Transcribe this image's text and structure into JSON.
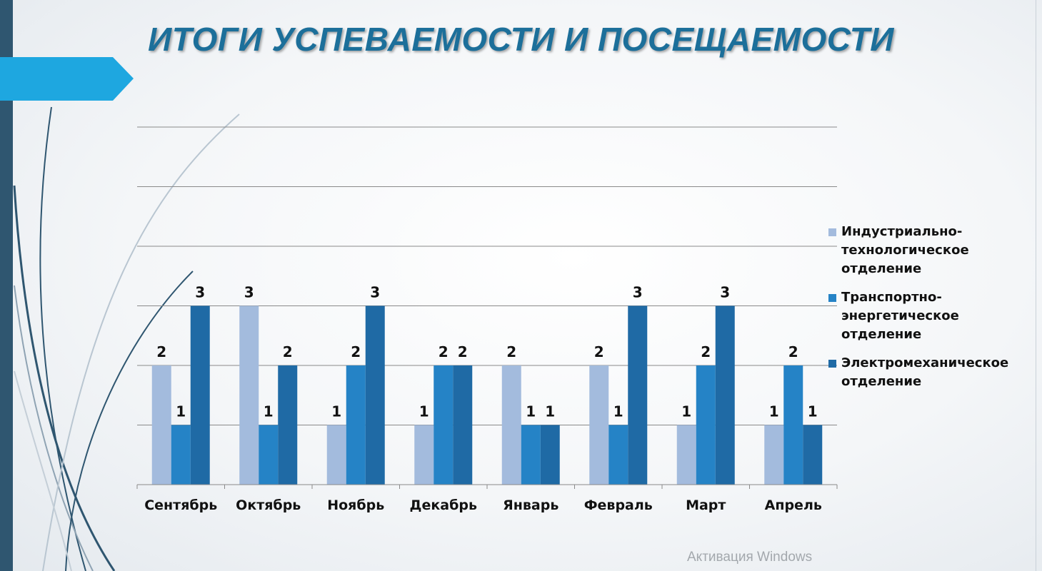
{
  "slide": {
    "title": "ИТОГИ УСПЕВАЕМОСТИ И ПОСЕЩАЕМОСТИ",
    "watermark": "Активация Windows",
    "colors": {
      "accent": "#1ea7e0",
      "sidebar": "#2f5670",
      "title": "#1c6f9a"
    }
  },
  "chart_data": {
    "type": "bar",
    "title": "",
    "xlabel": "",
    "ylabel": "",
    "ylim": [
      0,
      6
    ],
    "grid": true,
    "legend_position": "right",
    "categories": [
      "Сентябрь",
      "Октябрь",
      "Ноябрь",
      "Декабрь",
      "Январь",
      "Февраль",
      "Март",
      "Апрель"
    ],
    "series": [
      {
        "name": "Индустриально-технологическое отделение",
        "color": "#a3bbdd",
        "values": [
          2,
          3,
          1,
          1,
          2,
          2,
          1,
          1
        ]
      },
      {
        "name": "Транспортно-энергетическое отделение",
        "color": "#2583c6",
        "values": [
          1,
          1,
          2,
          2,
          1,
          1,
          2,
          2
        ]
      },
      {
        "name": "Электромеханическое отделение",
        "color": "#1f6aa5",
        "values": [
          3,
          2,
          3,
          2,
          1,
          3,
          3,
          1
        ]
      }
    ]
  }
}
